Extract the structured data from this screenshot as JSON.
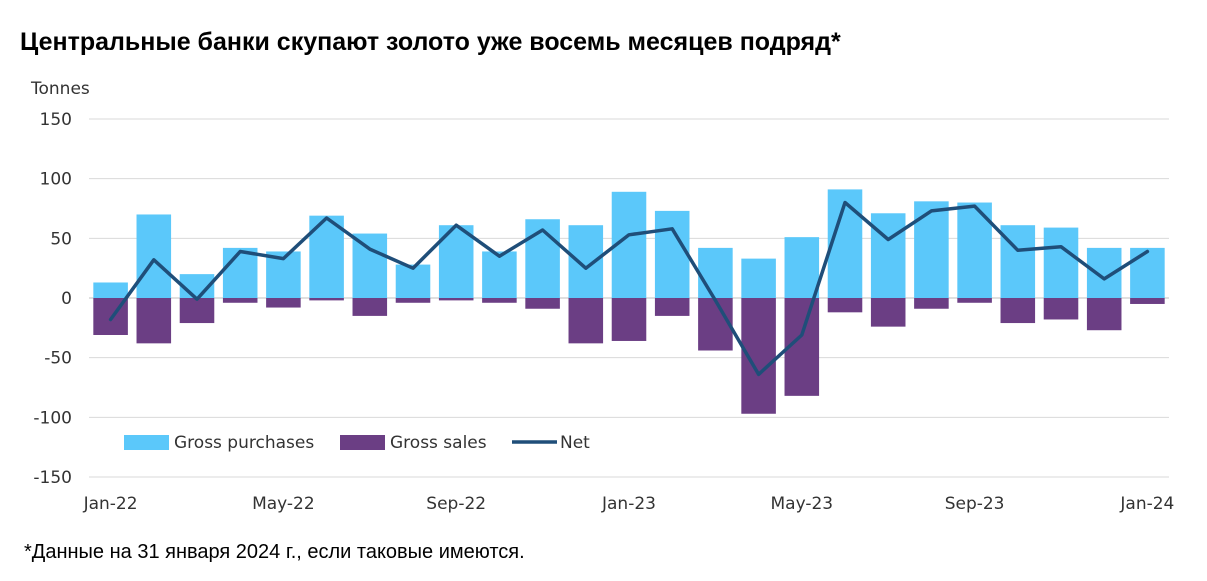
{
  "title": "Центральные банки скупают золото уже восемь месяцев подряд*",
  "footnote": "*Данные на 31 января 2024 г., если таковые имеются.",
  "chart_data": {
    "type": "bar",
    "ylabel": "Tonnes",
    "ylim": [
      -150,
      150
    ],
    "yticks": [
      "150",
      "100",
      "50",
      "0",
      "-50",
      "-100",
      "-150"
    ],
    "ytick_values": [
      150,
      100,
      50,
      0,
      -50,
      -100,
      -150
    ],
    "categories": [
      "Jan-22",
      "Feb-22",
      "Mar-22",
      "Apr-22",
      "May-22",
      "Jun-22",
      "Jul-22",
      "Aug-22",
      "Sep-22",
      "Oct-22",
      "Nov-22",
      "Dec-22",
      "Jan-23",
      "Feb-23",
      "Mar-23",
      "Apr-23",
      "May-23",
      "Jun-23",
      "Jul-23",
      "Aug-23",
      "Sep-23",
      "Oct-23",
      "Nov-23",
      "Dec-23",
      "Jan-24"
    ],
    "xtick_labels": [
      "Jan-22",
      "May-22",
      "Sep-22",
      "Jan-23",
      "May-23",
      "Sep-23",
      "Jan-24"
    ],
    "xtick_indices": [
      0,
      4,
      8,
      12,
      16,
      20,
      24
    ],
    "legend_position": "bottom-left",
    "series": [
      {
        "name": "Gross purchases",
        "kind": "bar",
        "color": "#5BC8FA",
        "values": [
          13,
          70,
          20,
          42,
          39,
          69,
          54,
          28,
          61,
          39,
          66,
          61,
          89,
          73,
          42,
          33,
          51,
          91,
          71,
          81,
          80,
          61,
          59,
          42,
          42
        ]
      },
      {
        "name": "Gross sales",
        "kind": "bar",
        "color": "#6B3E84",
        "values": [
          -31,
          -38,
          -21,
          -4,
          -8,
          -2,
          -15,
          -4,
          -2,
          -4,
          -9,
          -38,
          -36,
          -15,
          -44,
          -97,
          -82,
          -12,
          -24,
          -9,
          -4,
          -21,
          -18,
          -27,
          -5
        ]
      },
      {
        "name": "Net",
        "kind": "line",
        "color": "#1F4E79",
        "values": [
          -18,
          32,
          -1,
          39,
          33,
          67,
          41,
          25,
          61,
          35,
          57,
          25,
          53,
          58,
          -2,
          -64,
          -31,
          80,
          49,
          73,
          77,
          40,
          43,
          16,
          39
        ]
      }
    ]
  }
}
